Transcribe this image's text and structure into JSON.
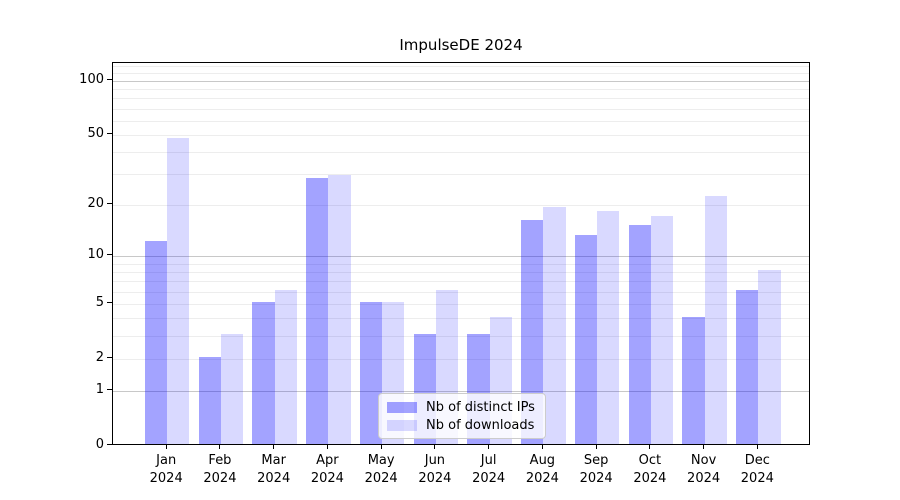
{
  "chart_data": {
    "type": "bar",
    "title": "ImpulseDE 2024",
    "categories": [
      "Jan",
      "Feb",
      "Mar",
      "Apr",
      "May",
      "Jun",
      "Jul",
      "Aug",
      "Sep",
      "Oct",
      "Nov",
      "Dec"
    ],
    "x_tick_year": "2024",
    "series": [
      {
        "name": "Nb of distinct IPs",
        "color": "rgba(0,0,255,0.36)",
        "color_on_white": "#a3a3f8",
        "values": [
          12,
          2,
          5,
          28,
          5,
          3,
          3,
          16,
          13,
          15,
          4,
          6
        ]
      },
      {
        "name": "Nb of downloads",
        "color": "rgba(0,0,255,0.15)",
        "color_on_white": "#d9d9f8",
        "values": [
          47,
          3,
          6,
          29,
          5,
          6,
          4,
          19,
          18,
          17,
          22,
          8
        ]
      }
    ],
    "yscale": "log10(1+x)",
    "ylim": [
      0,
      125
    ],
    "y_ticks": [
      0,
      1,
      2,
      5,
      10,
      20,
      50,
      100
    ],
    "y_major_gridlines": [
      1,
      10,
      100
    ],
    "y_minor_gridlines": [
      2,
      3,
      4,
      5,
      6,
      7,
      8,
      9,
      20,
      30,
      40,
      50,
      60,
      70,
      80,
      90,
      110,
      120
    ],
    "grid": true,
    "legend_position": "lower center",
    "colors": {
      "grid_minor": "#ededed",
      "grid_major": "#c8c8c8",
      "axis": "#000000",
      "background": "#ffffff"
    }
  }
}
